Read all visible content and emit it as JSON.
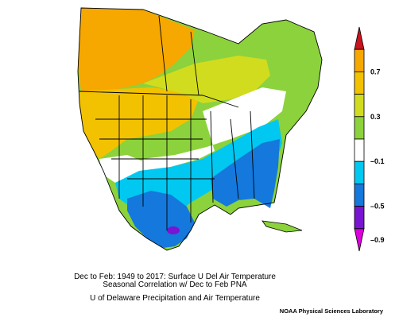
{
  "map": {
    "title_line1": "Dec to Feb: 1949 to 2017: Surface U Del Air Temperature",
    "title_line2": "Seasonal Correlation w/ Dec to Feb PNA",
    "dataset": "U of Delaware Precipitation and Air Temperature",
    "credit": "NOAA Physical Sciences Laboratory"
  },
  "legend": {
    "tick_labels": [
      "0.7",
      "0.3",
      "–0.1",
      "–0.5",
      "–0.9"
    ],
    "bins": [
      {
        "color": "#c8141e"
      },
      {
        "color": "#f6a800"
      },
      {
        "color": "#f2c200"
      },
      {
        "color": "#d2dc1e"
      },
      {
        "color": "#8cd23c"
      },
      {
        "color": "#ffffff"
      },
      {
        "color": "#00c8f0"
      },
      {
        "color": "#1478dc"
      },
      {
        "color": "#7814d2"
      },
      {
        "color": "#dc00dc"
      }
    ]
  }
}
